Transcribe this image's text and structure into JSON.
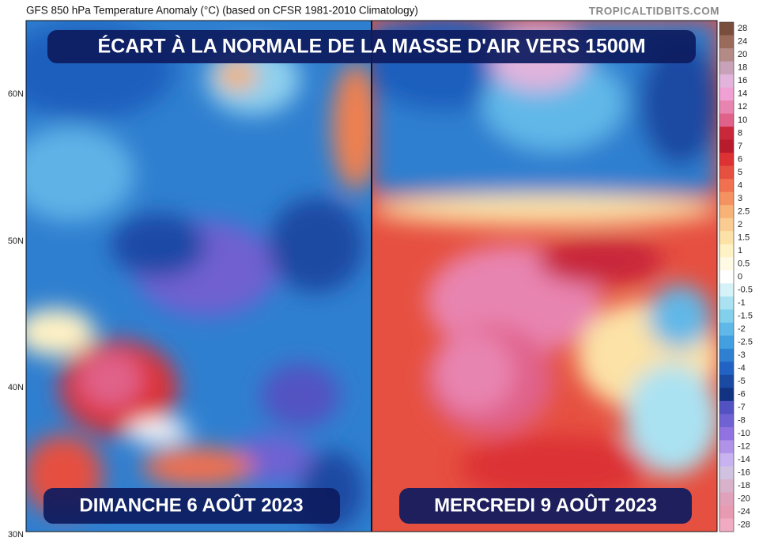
{
  "header": {
    "title": "GFS 850 hPa Temperature Anomaly (°C) (based on CFSR 1981-2010 Climatology)",
    "source": "TROPICALTIDBITS.COM"
  },
  "banner": "ÉCART À LA NORMALE DE LA MASSE D'AIR VERS 1500M",
  "panels": [
    {
      "date": "DIMANCHE 6 AOÛT 2023"
    },
    {
      "date": "MERCREDI 9 AOÛT 2023"
    }
  ],
  "latitude_labels": [
    "60N",
    "50N",
    "40N",
    "30N"
  ],
  "colorbar": [
    {
      "label": "28",
      "color": "#7a4e3c"
    },
    {
      "label": "24",
      "color": "#9a6a5a"
    },
    {
      "label": "20",
      "color": "#b48a86"
    },
    {
      "label": "18",
      "color": "#c8a2b8"
    },
    {
      "label": "16",
      "color": "#e2b4dc"
    },
    {
      "label": "14",
      "color": "#f0a0d2"
    },
    {
      "label": "12",
      "color": "#e884b0"
    },
    {
      "label": "10",
      "color": "#e0628a"
    },
    {
      "label": "8",
      "color": "#c8283a"
    },
    {
      "label": "7",
      "color": "#b81c2c"
    },
    {
      "label": "6",
      "color": "#dc3234"
    },
    {
      "label": "5",
      "color": "#e65040"
    },
    {
      "label": "4",
      "color": "#f07050"
    },
    {
      "label": "3",
      "color": "#f49262"
    },
    {
      "label": "2.5",
      "color": "#f8b276"
    },
    {
      "label": "2",
      "color": "#facc92"
    },
    {
      "label": "1.5",
      "color": "#fce2a6"
    },
    {
      "label": "1",
      "color": "#fff2c4"
    },
    {
      "label": "0.5",
      "color": "#fffae4"
    },
    {
      "label": "0",
      "color": "#ffffff"
    },
    {
      "label": "-0.5",
      "color": "#d4f2f8"
    },
    {
      "label": "-1",
      "color": "#aae2f2"
    },
    {
      "label": "-1.5",
      "color": "#82d0ec"
    },
    {
      "label": "-2",
      "color": "#60b8e8"
    },
    {
      "label": "-2.5",
      "color": "#42a0e0"
    },
    {
      "label": "-3",
      "color": "#3080d2"
    },
    {
      "label": "-4",
      "color": "#2262c2"
    },
    {
      "label": "-5",
      "color": "#1a4aa2"
    },
    {
      "label": "-6",
      "color": "#123282"
    },
    {
      "label": "-7",
      "color": "#5252c2"
    },
    {
      "label": "-8",
      "color": "#7062d2"
    },
    {
      "label": "-10",
      "color": "#9072e0"
    },
    {
      "label": "-12",
      "color": "#b092e8"
    },
    {
      "label": "-14",
      "color": "#c8b2f0"
    },
    {
      "label": "-16",
      "color": "#d2c2e2"
    },
    {
      "label": "-18",
      "color": "#d8b2ca"
    },
    {
      "label": "-20",
      "color": "#e0a2ba"
    },
    {
      "label": "-24",
      "color": "#e89ab2"
    },
    {
      "label": "-28",
      "color": "#f0aac2"
    }
  ]
}
